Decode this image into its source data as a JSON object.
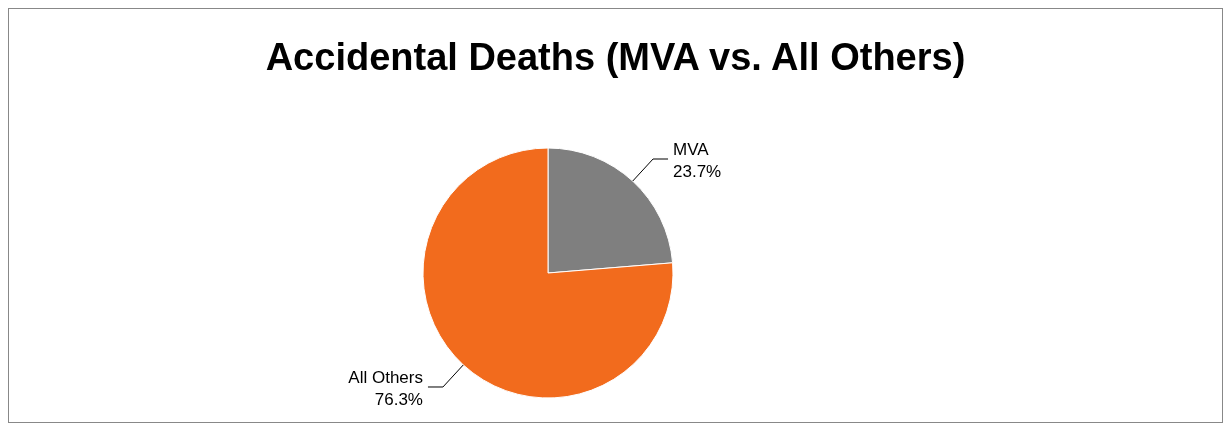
{
  "chart_data": {
    "type": "pie",
    "title": "Accidental Deaths (MVA vs. All Others)",
    "categories": [
      "MVA",
      "All Others"
    ],
    "values": [
      23.7,
      76.3
    ],
    "colors": [
      "#7f7f7f",
      "#f26b1d"
    ],
    "value_labels": [
      "23.7%",
      "76.3%"
    ]
  }
}
